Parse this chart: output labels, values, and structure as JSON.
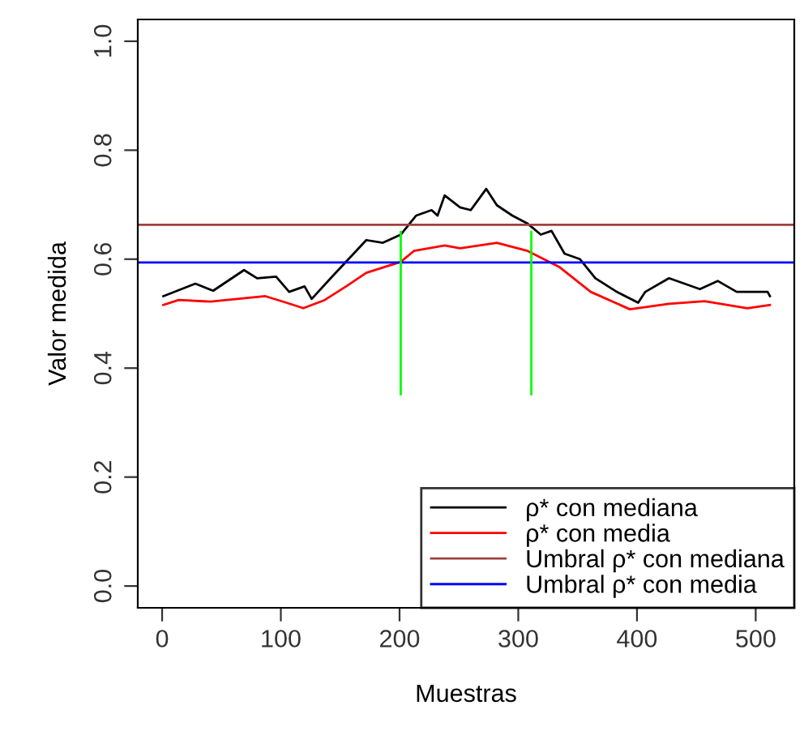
{
  "chart_data": {
    "type": "line",
    "xlabel": "Muestras",
    "ylabel": "Valor medida",
    "xlim": [
      -20.5,
      532.5
    ],
    "xticks": [
      0,
      100,
      200,
      300,
      400,
      500
    ],
    "ylim": [
      -0.04,
      1.04
    ],
    "yticks": [
      {
        "value": 0,
        "label": "0.0"
      },
      0.2,
      0.4,
      0.6,
      0.8,
      {
        "value": 1,
        "label": "1.0"
      }
    ],
    "grid": false,
    "legend": "bottom right",
    "marker": "none",
    "line_style": "solid",
    "series": [
      {
        "name": "ρ* con mediana",
        "color": "#000000",
        "x": [
          1,
          28,
          43,
          69,
          80,
          96,
          107,
          120,
          126,
          142,
          157,
          172,
          186,
          201,
          214,
          227,
          232,
          238,
          251,
          260,
          273,
          282,
          295,
          308,
          319,
          328,
          339,
          352,
          365,
          383,
          401,
          407,
          427,
          453,
          468,
          484,
          510,
          512
        ],
        "values": [
          0.532,
          0.555,
          0.542,
          0.58,
          0.565,
          0.568,
          0.54,
          0.55,
          0.527,
          0.565,
          0.6,
          0.635,
          0.63,
          0.645,
          0.68,
          0.69,
          0.68,
          0.717,
          0.695,
          0.69,
          0.729,
          0.699,
          0.68,
          0.665,
          0.645,
          0.652,
          0.61,
          0.6,
          0.565,
          0.54,
          0.52,
          0.54,
          0.565,
          0.545,
          0.56,
          0.54,
          0.54,
          0.532
        ]
      },
      {
        "name": "ρ* con media",
        "color": "#ff0000",
        "x": [
          1,
          14,
          41,
          87,
          102,
          119,
          137,
          155,
          172,
          201,
          212,
          238,
          251,
          282,
          308,
          335,
          361,
          394,
          427,
          457,
          493,
          512
        ],
        "values": [
          0.516,
          0.525,
          0.522,
          0.532,
          0.522,
          0.51,
          0.525,
          0.55,
          0.575,
          0.595,
          0.615,
          0.625,
          0.62,
          0.63,
          0.615,
          0.585,
          0.54,
          0.508,
          0.518,
          0.523,
          0.51,
          0.516
        ]
      },
      {
        "name": "Umbral ρ* con mediana",
        "color": "#a0403c",
        "x": [
          -20.5,
          532.5
        ],
        "values": [
          0.663,
          0.663
        ]
      },
      {
        "name": "Umbral ρ* con media",
        "color": "#0000ff",
        "x": [
          -20.5,
          532.5
        ],
        "values": [
          0.594,
          0.594
        ]
      },
      {
        "color": "#00ff00",
        "x": [
          201,
          201
        ],
        "values": [
          0.352,
          0.65
        ]
      },
      {
        "color": "#00ff00",
        "x": [
          311,
          311
        ],
        "values": [
          0.352,
          0.65
        ]
      }
    ]
  }
}
